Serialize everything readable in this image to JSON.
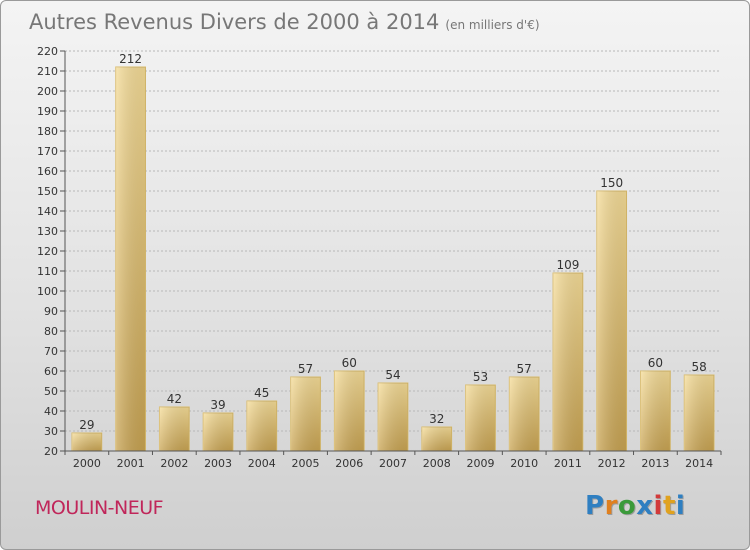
{
  "header": {
    "title": "Autres Revenus Divers de 2000 à 2014",
    "subtitle": "(en milliers d'€)"
  },
  "footer": {
    "place": "MOULIN-NEUF"
  },
  "logo": {
    "letters": [
      "P",
      "r",
      "o",
      "x",
      "i",
      "t",
      "i"
    ],
    "colors": [
      "#2f7fc1",
      "#e0801f",
      "#3a9a3a",
      "#2f7fc1",
      "#d23a3a",
      "#e0a21f",
      "#2f7fc1"
    ]
  },
  "colors": {
    "bar_top": "#f6dd98",
    "bar_bottom": "#c9a452",
    "bar_stroke": "#d8ba6a"
  },
  "chart_data": {
    "type": "bar",
    "title": "Autres Revenus Divers de 2000 à 2014",
    "subtitle": "(en milliers d'€)",
    "categories": [
      "2000",
      "2001",
      "2002",
      "2003",
      "2004",
      "2005",
      "2006",
      "2007",
      "2008",
      "2009",
      "2010",
      "2011",
      "2012",
      "2013",
      "2014"
    ],
    "values": [
      29,
      212,
      42,
      39,
      45,
      57,
      60,
      54,
      32,
      53,
      57,
      109,
      150,
      60,
      58
    ],
    "ylim": [
      20,
      220
    ],
    "yticks": [
      20,
      30,
      40,
      50,
      60,
      70,
      80,
      90,
      100,
      110,
      120,
      130,
      140,
      150,
      160,
      170,
      180,
      190,
      200,
      210,
      220
    ],
    "grid": true,
    "xlabel": "",
    "ylabel": ""
  }
}
